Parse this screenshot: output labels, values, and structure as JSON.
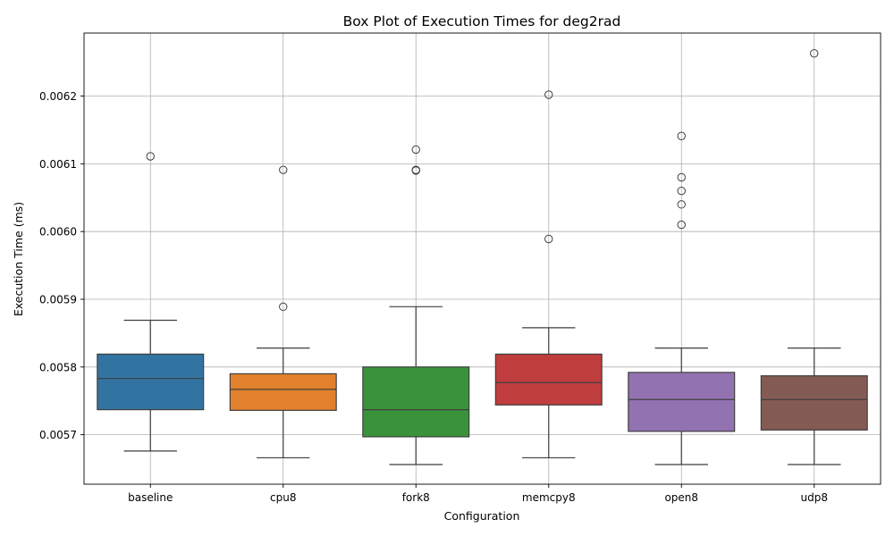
{
  "chart_data": {
    "type": "box",
    "title": "Box Plot of Execution Times for deg2rad",
    "xlabel": "Configuration",
    "ylabel": "Execution Time (ms)",
    "ylim": [
      0.005627,
      0.006293
    ],
    "yticks": [
      0.0057,
      0.0058,
      0.0059,
      0.006,
      0.0061,
      0.0062
    ],
    "ytick_labels": [
      "0.0057",
      "0.0058",
      "0.0059",
      "0.0060",
      "0.0061",
      "0.0062"
    ],
    "grid": true,
    "categories": [
      "baseline",
      "cpu8",
      "fork8",
      "memcpy8",
      "open8",
      "udp8"
    ],
    "boxes": [
      {
        "category": "baseline",
        "color": "#3274a1",
        "whislo": 0.005676,
        "q1": 0.005737,
        "med": 0.005783,
        "q3": 0.005819,
        "whishi": 0.005869,
        "fliers": [
          0.006111
        ]
      },
      {
        "category": "cpu8",
        "color": "#e1812c",
        "whislo": 0.005666,
        "q1": 0.005736,
        "med": 0.005767,
        "q3": 0.00579,
        "whishi": 0.005828,
        "fliers": [
          0.006091,
          0.005889
        ]
      },
      {
        "category": "fork8",
        "color": "#3a923a",
        "whislo": 0.005656,
        "q1": 0.005697,
        "med": 0.005737,
        "q3": 0.0058,
        "whishi": 0.005889,
        "fliers": [
          0.006121,
          0.006091,
          0.00609
        ]
      },
      {
        "category": "memcpy8",
        "color": "#c03d3e",
        "whislo": 0.005666,
        "q1": 0.005744,
        "med": 0.005777,
        "q3": 0.005819,
        "whishi": 0.005858,
        "fliers": [
          0.006202,
          0.005989
        ]
      },
      {
        "category": "open8",
        "color": "#9372b2",
        "whislo": 0.005656,
        "q1": 0.005705,
        "med": 0.005752,
        "q3": 0.005792,
        "whishi": 0.005828,
        "fliers": [
          0.006141,
          0.00608,
          0.00606,
          0.00604,
          0.00601
        ]
      },
      {
        "category": "udp8",
        "color": "#845b53",
        "whislo": 0.005656,
        "q1": 0.005707,
        "med": 0.005752,
        "q3": 0.005787,
        "whishi": 0.005828,
        "fliers": [
          0.006263
        ]
      }
    ]
  }
}
